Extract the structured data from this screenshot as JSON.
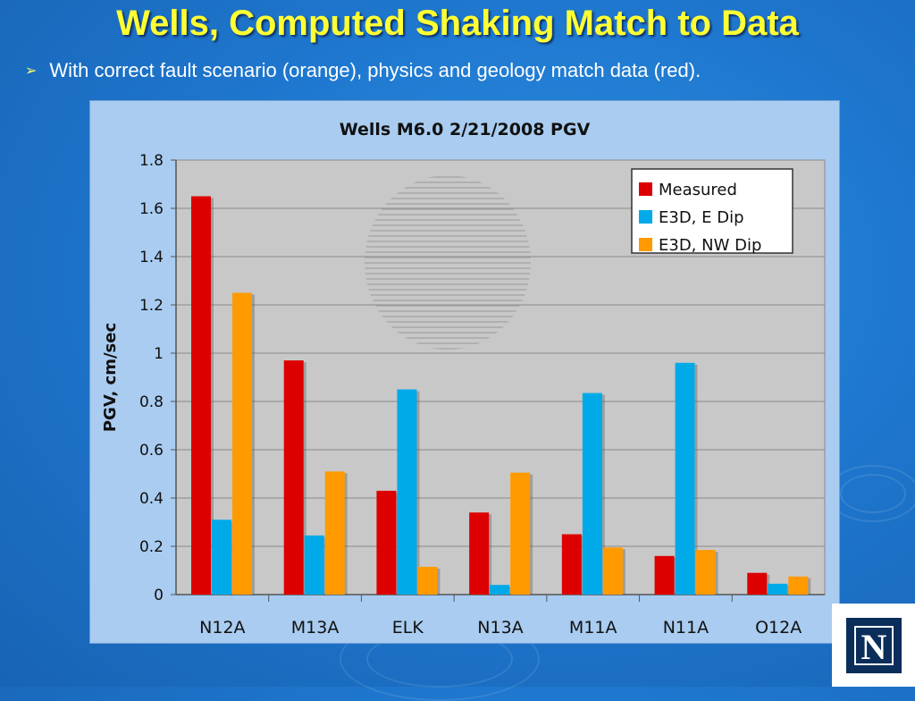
{
  "slide": {
    "title": "Wells, Computed Shaking Match to Data",
    "bullet": "With correct fault scenario (orange), physics and geology match data (red).",
    "bullet_icon": "arrow-bullet-icon"
  },
  "logo": {
    "letter": "N",
    "icon": "university-logo"
  },
  "colors": {
    "title": "#ffff33",
    "plot_bg": "#c8c8c8",
    "panel_bg": "#a9ccf0"
  },
  "chart_data": {
    "type": "bar",
    "title": "Wells M6.0 2/21/2008 PGV",
    "xlabel": "",
    "ylabel": "PGV, cm/sec",
    "ylim": [
      0,
      1.8
    ],
    "yticks": [
      "0",
      "0.2",
      "0.4",
      "0.6",
      "0.8",
      "1",
      "1.2",
      "1.4",
      "1.6",
      "1.8"
    ],
    "grid": true,
    "legend_position": "top-right",
    "categories": [
      "N12A",
      "M13A",
      "ELK",
      "N13A",
      "M11A",
      "N11A",
      "O12A"
    ],
    "series": [
      {
        "name": "Measured",
        "color": "#dd0000",
        "values": [
          1.65,
          0.97,
          0.43,
          0.34,
          0.25,
          0.16,
          0.09
        ]
      },
      {
        "name": "E3D, E Dip",
        "color": "#00aae8",
        "values": [
          0.31,
          0.245,
          0.85,
          0.04,
          0.835,
          0.96,
          0.045
        ]
      },
      {
        "name": "E3D, NW Dip",
        "color": "#ff9a00",
        "values": [
          1.25,
          0.51,
          0.115,
          0.505,
          0.195,
          0.185,
          0.075
        ]
      }
    ]
  }
}
